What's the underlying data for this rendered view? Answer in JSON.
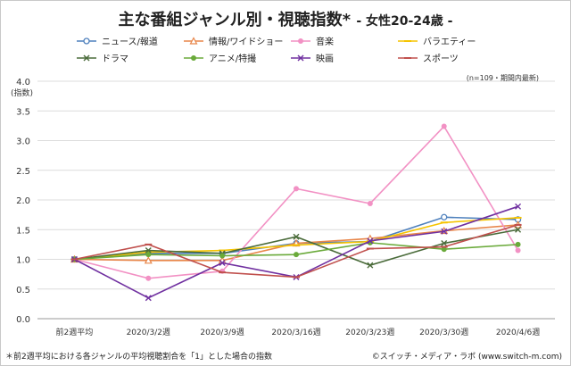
{
  "title": "主な番組ジャンル別・視聴指数*",
  "subtitle": "- 女性20-24歳 -",
  "note_top": "(n=109・期間内最新)",
  "footnote": "＊前2週平均における各ジャンルの平均視聴割合を「1」とした場合の指数",
  "credit": "©スイッチ・メディア・ラボ (www.switch-m.com)",
  "chart_data": {
    "type": "line",
    "title": "主な番組ジャンル別・視聴指数*",
    "ylabel": "(指数)",
    "xlabel": "",
    "ylim": [
      0,
      4
    ],
    "yticks": [
      0,
      0.5,
      1,
      1.5,
      2,
      2.5,
      3,
      3.5,
      4
    ],
    "ytick_labels": [
      "0.0",
      "0.5",
      "1.0",
      "1.5",
      "2.0",
      "2.5",
      "3.0",
      "3.5",
      "4.0"
    ],
    "grid": true,
    "legend_position": "top",
    "categories": [
      "前2週平均",
      "2020/3/2週",
      "2020/3/9週",
      "2020/3/16週",
      "2020/3/23週",
      "2020/3/30週",
      "2020/4/6週"
    ],
    "series": [
      {
        "name": "ニュース/報道",
        "color": "#4f81bd",
        "marker": "circle-open",
        "values": [
          1.0,
          1.1,
          1.1,
          1.27,
          1.3,
          1.71,
          1.67
        ]
      },
      {
        "name": "情報/ワイドショー",
        "color": "#e8864a",
        "marker": "triangle",
        "values": [
          1.0,
          0.98,
          0.98,
          1.27,
          1.35,
          1.48,
          1.58
        ]
      },
      {
        "name": "音楽",
        "color": "#f291c4",
        "marker": "circle",
        "values": [
          1.0,
          0.68,
          0.8,
          2.19,
          1.94,
          3.24,
          1.15
        ]
      },
      {
        "name": "バラエティー",
        "color": "#f5c400",
        "marker": "bar",
        "values": [
          1.0,
          1.12,
          1.15,
          1.24,
          1.3,
          1.62,
          1.7
        ]
      },
      {
        "name": "ドラマ",
        "color": "#4a6b3a",
        "marker": "x",
        "values": [
          1.0,
          1.15,
          1.1,
          1.38,
          0.9,
          1.27,
          1.5
        ]
      },
      {
        "name": "アニメ/特撮",
        "color": "#6aaa3a",
        "marker": "circle",
        "values": [
          1.0,
          1.08,
          1.06,
          1.08,
          1.28,
          1.17,
          1.25
        ]
      },
      {
        "name": "映画",
        "color": "#7030a0",
        "marker": "x",
        "values": [
          1.0,
          0.35,
          0.94,
          0.7,
          1.31,
          1.47,
          1.89
        ]
      },
      {
        "name": "スポーツ",
        "color": "#c0504d",
        "marker": "bar",
        "values": [
          1.0,
          1.25,
          0.78,
          0.7,
          1.18,
          1.21,
          1.58
        ]
      }
    ]
  }
}
